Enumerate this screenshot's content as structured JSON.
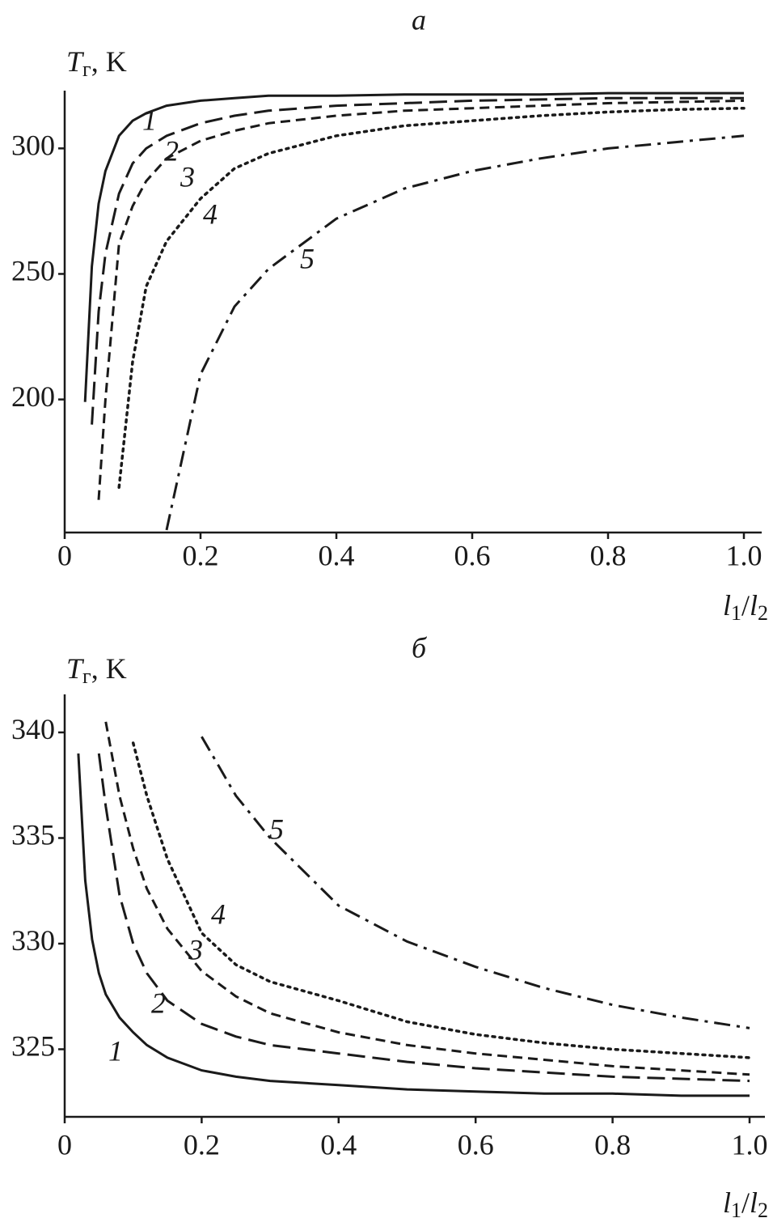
{
  "chart_data": [
    {
      "type": "line",
      "title": "а",
      "ylabel": {
        "main": "T",
        "sub": "г",
        "rest": ", K"
      },
      "xlabel": {
        "a": "l",
        "a_sub": "1",
        "slash": "/",
        "b": "l",
        "b_sub": "2"
      },
      "x": [
        0.03,
        0.04,
        0.05,
        0.06,
        0.08,
        0.1,
        0.12,
        0.15,
        0.2,
        0.25,
        0.3,
        0.4,
        0.5,
        0.6,
        0.7,
        0.8,
        0.9,
        1.0
      ],
      "series": [
        {
          "name": "1",
          "color": "#1a1a1a",
          "dash": "solid",
          "values": [
            199,
            253,
            278,
            291,
            305,
            311,
            314,
            317,
            319,
            320,
            321,
            321,
            321.5,
            321.5,
            321.5,
            322,
            322,
            322
          ]
        },
        {
          "name": "2",
          "color": "#1a1a1a",
          "dash": "long-dash",
          "values": [
            null,
            190,
            235,
            258,
            282,
            294,
            300,
            305,
            310,
            313,
            315,
            317,
            318,
            319,
            319.5,
            320,
            320,
            320
          ]
        },
        {
          "name": "3",
          "color": "#1a1a1a",
          "dash": "dash",
          "values": [
            null,
            null,
            160,
            200,
            262,
            277,
            287,
            296,
            303,
            307,
            310,
            313,
            315,
            316,
            317,
            318,
            318.5,
            319
          ]
        },
        {
          "name": "4",
          "color": "#1a1a1a",
          "dash": "dot",
          "values": [
            null,
            null,
            null,
            null,
            165,
            215,
            245,
            263,
            280,
            292,
            298,
            305,
            309,
            311,
            313,
            314.5,
            315.5,
            316
          ]
        },
        {
          "name": "5",
          "color": "#1a1a1a",
          "dash": "dash-dot",
          "values": [
            null,
            null,
            null,
            null,
            null,
            null,
            null,
            148,
            210,
            237,
            252,
            272,
            284,
            291,
            296,
            300,
            302.5,
            305
          ]
        }
      ],
      "xlim": [
        0,
        1.0
      ],
      "xticks": [
        0,
        0.2,
        0.4,
        0.6,
        0.8,
        {
          "value": 1.0,
          "label": "1.0"
        }
      ],
      "ylim": [
        147,
        323
      ],
      "yticks": [
        200,
        250,
        300
      ],
      "grid": false
    },
    {
      "type": "line",
      "title": "б",
      "ylabel": {
        "main": "T",
        "sub": "г",
        "rest": ", K"
      },
      "xlabel": {
        "a": "l",
        "a_sub": "1",
        "slash": "/",
        "b": "l",
        "b_sub": "2"
      },
      "x": [
        0.02,
        0.03,
        0.04,
        0.05,
        0.06,
        0.08,
        0.1,
        0.12,
        0.15,
        0.2,
        0.25,
        0.3,
        0.4,
        0.5,
        0.6,
        0.7,
        0.8,
        0.9,
        1.0
      ],
      "series": [
        {
          "name": "1",
          "color": "#1a1a1a",
          "dash": "solid",
          "values": [
            339,
            333,
            330.2,
            328.6,
            327.6,
            326.5,
            325.8,
            325.2,
            324.6,
            324,
            323.7,
            323.5,
            323.3,
            323.1,
            323,
            322.9,
            322.9,
            322.8,
            322.8
          ]
        },
        {
          "name": "2",
          "color": "#1a1a1a",
          "dash": "long-dash",
          "values": [
            null,
            null,
            null,
            339,
            336.5,
            332.3,
            330,
            328.6,
            327.3,
            326.2,
            325.6,
            325.2,
            324.8,
            324.4,
            324.1,
            323.9,
            323.7,
            323.6,
            323.5
          ]
        },
        {
          "name": "3",
          "color": "#1a1a1a",
          "dash": "dash",
          "values": [
            null,
            null,
            null,
            null,
            340.5,
            337,
            334.5,
            332.6,
            330.7,
            328.7,
            327.5,
            326.7,
            325.8,
            325.2,
            324.8,
            324.5,
            324.2,
            324,
            323.8
          ]
        },
        {
          "name": "4",
          "color": "#1a1a1a",
          "dash": "dot",
          "values": [
            null,
            null,
            null,
            null,
            null,
            null,
            339.5,
            337,
            334,
            330.5,
            329,
            328.2,
            327.3,
            326.3,
            325.7,
            325.3,
            325,
            324.8,
            324.6
          ]
        },
        {
          "name": "5",
          "color": "#1a1a1a",
          "dash": "dash-dot",
          "values": [
            null,
            null,
            null,
            null,
            null,
            null,
            null,
            null,
            null,
            339.8,
            337,
            335,
            331.8,
            330.1,
            328.9,
            327.9,
            327.1,
            326.5,
            326
          ]
        }
      ],
      "xlim": [
        0,
        1.0
      ],
      "xticks": [
        0,
        0.2,
        0.4,
        0.6,
        0.8,
        {
          "value": 1.0,
          "label": "1.0"
        }
      ],
      "ylim": [
        321.8,
        341.8
      ],
      "yticks": [
        325,
        330,
        335,
        340
      ],
      "grid": false
    }
  ]
}
